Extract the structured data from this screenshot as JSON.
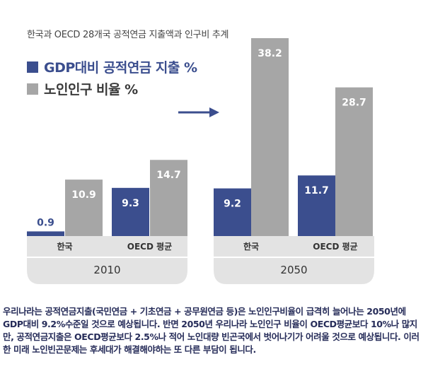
{
  "subtitle": "한국과 OECD 28개국 공적연금 지출액과 인구비 추계",
  "legend": [
    {
      "label": "GDP대비 공적연금 지출 %",
      "color": "#3b4e8e"
    },
    {
      "label": "노인인구 비율 %",
      "color": "#a6a6a6"
    }
  ],
  "chart_data": {
    "type": "bar",
    "groups": [
      {
        "period": "2010",
        "categories": [
          "한국",
          "OECD 평균"
        ],
        "series": [
          {
            "name": "GDP대비 공적연금 지출 %",
            "values": [
              0.9,
              9.3
            ]
          },
          {
            "name": "노인인구 비율 %",
            "values": [
              10.9,
              14.7
            ]
          }
        ]
      },
      {
        "period": "2050",
        "categories": [
          "한국",
          "OECD 평균"
        ],
        "series": [
          {
            "name": "GDP대비 공적연금 지출 %",
            "values": [
              9.2,
              11.7
            ]
          },
          {
            "name": "노인인구 비율 %",
            "values": [
              38.2,
              28.7
            ]
          }
        ]
      }
    ],
    "ylim": [
      0,
      40
    ],
    "colors": {
      "gdp": "#3b4e8e",
      "elderly": "#a6a6a6",
      "panel": "#e3e3e3",
      "arrow": "#3b4e8e"
    }
  },
  "caption": "우리나라는 공적연금지출(국민연금 + 기초연금 + 공무원연금 등)은 노인인구비율이 급격히 늘어나는 2050년에 GDP대비 9.2%수준일 것으로 예상됩니다. 반면 2050년 우리나라 노인인구 비율이 OECD평균보다 10%나 많지만, 공적연금지출은 OECD평균보다 2.5%나 적어 노인대량 빈곤국에서 벗어나기가 어려울 것으로 예상됩니다. 이러한 미래 노인빈곤문제는 후세대가 해결해야하는 또 다른 부담이 됩니다."
}
